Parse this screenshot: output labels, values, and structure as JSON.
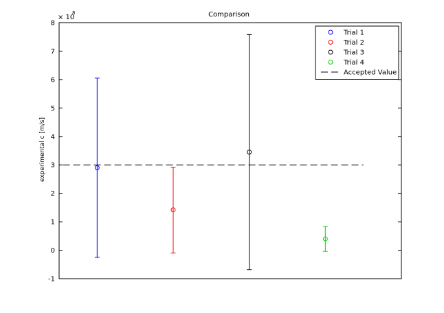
{
  "chart_data": {
    "type": "scatter",
    "title": "Comparison",
    "xlabel": "",
    "ylabel": "experimental c [m/s]",
    "y_exponent_base": "× 10",
    "y_exponent_power": "8",
    "xlim": [
      0.5,
      5
    ],
    "ylim": [
      -1,
      8
    ],
    "yticks": [
      -1,
      0,
      1,
      2,
      3,
      4,
      5,
      6,
      7,
      8
    ],
    "yticklabels": [
      "-1",
      "0",
      "1",
      "2",
      "3",
      "4",
      "5",
      "6",
      "7",
      "8"
    ],
    "grid": false,
    "legend_position": "top-right",
    "series": [
      {
        "name": "Trial 1",
        "color": "#0000ff",
        "marker": "circle",
        "x": 1.0,
        "y": 2.9,
        "err_low": -0.25,
        "err_high": 6.05
      },
      {
        "name": "Trial 2",
        "color": "#ff0000",
        "marker": "circle",
        "x": 2.0,
        "y": 1.42,
        "err_low": -0.1,
        "err_high": 2.92
      },
      {
        "name": "Trial 3",
        "color": "#000000",
        "marker": "circle",
        "x": 3.0,
        "y": 3.45,
        "err_low": -0.68,
        "err_high": 7.58
      },
      {
        "name": "Trial 4",
        "color": "#00dd00",
        "marker": "circle",
        "x": 4.0,
        "y": 0.4,
        "err_low": -0.04,
        "err_high": 0.84
      }
    ],
    "reference_line": {
      "name": "Accepted Value",
      "y": 3.0,
      "x_start": 0.55,
      "x_end": 4.5,
      "color": "#000000",
      "style": "dashed"
    }
  }
}
